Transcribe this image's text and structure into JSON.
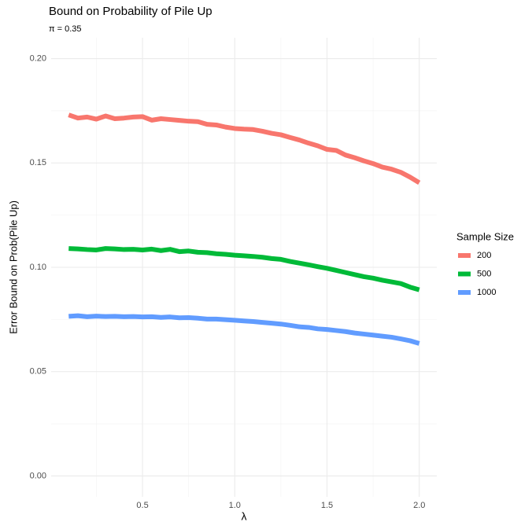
{
  "chart_data": {
    "type": "line",
    "title": "Bound on Probability of Pile Up",
    "subtitle": "π = 0.35",
    "x_label": "λ",
    "y_label": "Error Bound on Prob(Pile Up)",
    "legend_title": "Sample Size",
    "legend_position": "right",
    "grid": true,
    "x": [
      0.1,
      0.15,
      0.2,
      0.25,
      0.3,
      0.35,
      0.4,
      0.45,
      0.5,
      0.55,
      0.6,
      0.65,
      0.7,
      0.75,
      0.8,
      0.85,
      0.9,
      0.95,
      1.0,
      1.05,
      1.1,
      1.15,
      1.2,
      1.25,
      1.3,
      1.35,
      1.4,
      1.45,
      1.5,
      1.55,
      1.6,
      1.65,
      1.7,
      1.75,
      1.8,
      1.85,
      1.9,
      1.95,
      2.0
    ],
    "series": [
      {
        "name": "200",
        "color": "#f8766d",
        "values": [
          0.173,
          0.1715,
          0.172,
          0.171,
          0.1725,
          0.1712,
          0.1715,
          0.172,
          0.1722,
          0.1705,
          0.1712,
          0.1708,
          0.1704,
          0.17,
          0.1698,
          0.1685,
          0.1682,
          0.1672,
          0.1665,
          0.1662,
          0.166,
          0.1652,
          0.1642,
          0.1635,
          0.1622,
          0.161,
          0.1595,
          0.1582,
          0.1565,
          0.156,
          0.1538,
          0.1525,
          0.151,
          0.1497,
          0.148,
          0.147,
          0.1455,
          0.1432,
          0.1405
        ]
      },
      {
        "name": "500",
        "color": "#00ba38",
        "values": [
          0.109,
          0.1088,
          0.1085,
          0.1083,
          0.109,
          0.1088,
          0.1085,
          0.1086,
          0.1083,
          0.1087,
          0.108,
          0.1086,
          0.1075,
          0.1078,
          0.1072,
          0.107,
          0.1065,
          0.1062,
          0.1058,
          0.1055,
          0.1052,
          0.1048,
          0.1042,
          0.1038,
          0.1028,
          0.102,
          0.1012,
          0.1003,
          0.0995,
          0.0985,
          0.0975,
          0.0965,
          0.0955,
          0.0948,
          0.0938,
          0.093,
          0.0922,
          0.0905,
          0.0892
        ]
      },
      {
        "name": "1000",
        "color": "#619cff",
        "values": [
          0.0765,
          0.0768,
          0.0763,
          0.0766,
          0.0764,
          0.0765,
          0.0763,
          0.0764,
          0.0762,
          0.0763,
          0.076,
          0.0762,
          0.0758,
          0.0759,
          0.0756,
          0.0752,
          0.0752,
          0.0749,
          0.0746,
          0.0743,
          0.074,
          0.0736,
          0.0732,
          0.0728,
          0.0722,
          0.0715,
          0.0712,
          0.0705,
          0.0702,
          0.0697,
          0.0692,
          0.0685,
          0.068,
          0.0675,
          0.067,
          0.0665,
          0.0657,
          0.0648,
          0.0635
        ]
      }
    ],
    "xlim": [
      0.005,
      2.095
    ],
    "ylim": [
      -0.01,
      0.21
    ],
    "xticks": [
      {
        "value": 0.5,
        "label": "0.5"
      },
      {
        "value": 1.0,
        "label": "1.0"
      },
      {
        "value": 1.5,
        "label": "1.5"
      },
      {
        "value": 2.0,
        "label": "2.0"
      }
    ],
    "yticks": [
      {
        "value": 0,
        "label": "0.00"
      },
      {
        "value": 0.05,
        "label": "0.05"
      },
      {
        "value": 0.1,
        "label": "0.10"
      },
      {
        "value": 0.15,
        "label": "0.15"
      },
      {
        "value": 0.2,
        "label": "0.20"
      }
    ],
    "x_minor_ticks": [
      0.25,
      0.75,
      1.25,
      1.75
    ],
    "y_minor_ticks": [
      0.025,
      0.075,
      0.125,
      0.175
    ]
  }
}
